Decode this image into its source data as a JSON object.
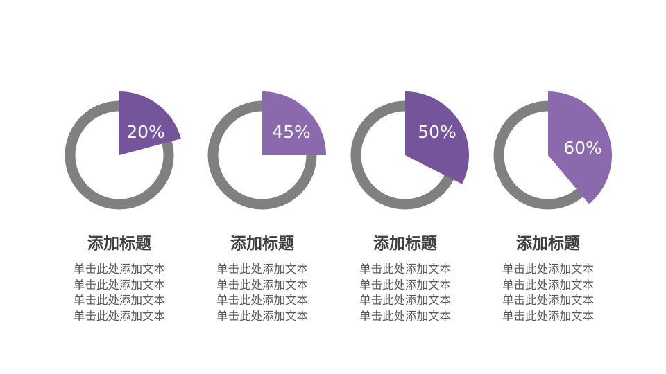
{
  "chart_data": [
    {
      "type": "pie",
      "values": [
        20
      ],
      "label": "20%",
      "title": "添加标题",
      "text": [
        "单击此处添加文本",
        "单击此处添加文本",
        "单击此处添加文本",
        "单击此处添加文本"
      ],
      "color": "#74549a"
    },
    {
      "type": "pie",
      "values": [
        45
      ],
      "label": "45%",
      "title": "添加标题",
      "text": [
        "单击此处添加文本",
        "单击此处添加文本",
        "单击此处添加文本",
        "单击此处添加文本"
      ],
      "color": "#8a6aac"
    },
    {
      "type": "pie",
      "values": [
        50
      ],
      "label": "50%",
      "title": "添加标题",
      "text": [
        "单击此处添加文本",
        "单击此处添加文本",
        "单击此处添加文本",
        "单击此处添加文本"
      ],
      "color": "#74549a"
    },
    {
      "type": "pie",
      "values": [
        60
      ],
      "label": "60%",
      "title": "添加标题",
      "text": [
        "单击此处添加文本",
        "单击此处添加文本",
        "单击此处添加文本",
        "单击此处添加文本"
      ],
      "color": "#8a6aac"
    }
  ],
  "ring_color": "#808080"
}
